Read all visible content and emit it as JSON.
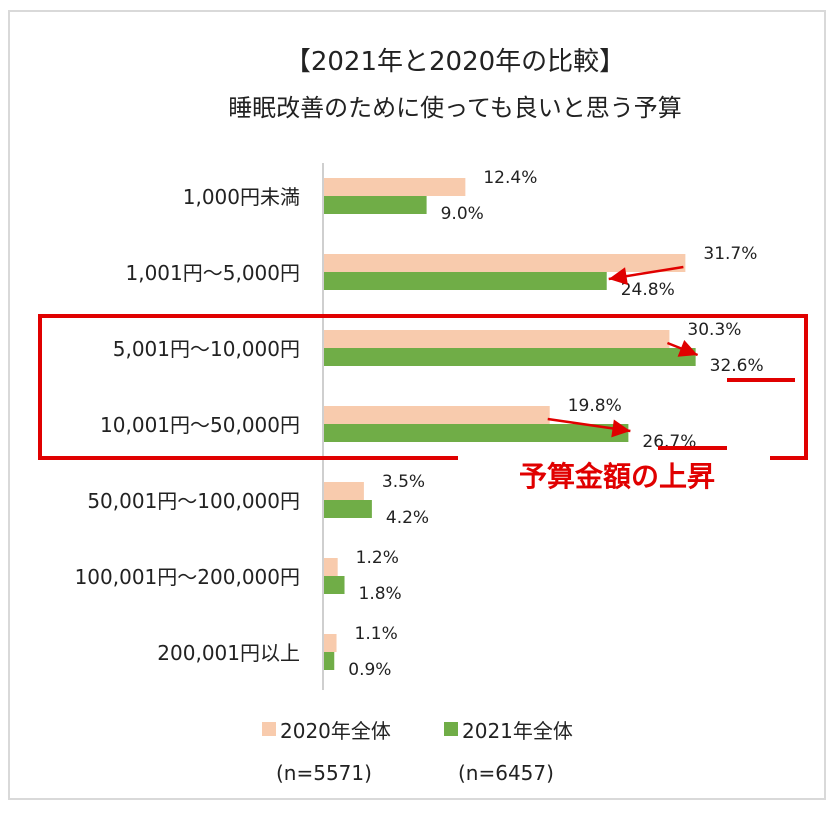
{
  "chart_data": {
    "type": "bar",
    "orientation": "horizontal",
    "title": "【2021年と2020年の比較】",
    "subtitle": "睡眠改善のために使っても良いと思う予算",
    "categories": [
      "1,000円未満",
      "1,001円～5,000円",
      "5,001円～10,000円",
      "10,001円～50,000円",
      "50,001円～100,000円",
      "100,001円～200,000円",
      "200,001円以上"
    ],
    "series": [
      {
        "name": "2020年全体",
        "note": "(n=5571)",
        "color": "#f8cbad",
        "values": [
          12.4,
          31.7,
          30.3,
          19.8,
          3.5,
          1.2,
          1.1
        ]
      },
      {
        "name": "2021年全体",
        "note": "(n=6457)",
        "color": "#70ad47",
        "values": [
          9.0,
          24.8,
          32.6,
          26.7,
          4.2,
          1.8,
          0.9
        ]
      }
    ],
    "value_labels": [
      [
        "12.4%",
        "9.0%"
      ],
      [
        "31.7%",
        "24.8%"
      ],
      [
        "30.3%",
        "32.6%"
      ],
      [
        "19.8%",
        "26.7%"
      ],
      [
        "3.5%",
        "4.2%"
      ],
      [
        "1.2%",
        "1.8%"
      ],
      [
        "1.1%",
        "0.9%"
      ]
    ],
    "xlim": [
      0,
      34
    ],
    "legend_position": "bottom",
    "annotation": "予算金額の上昇",
    "highlight_color": "#e00000"
  }
}
